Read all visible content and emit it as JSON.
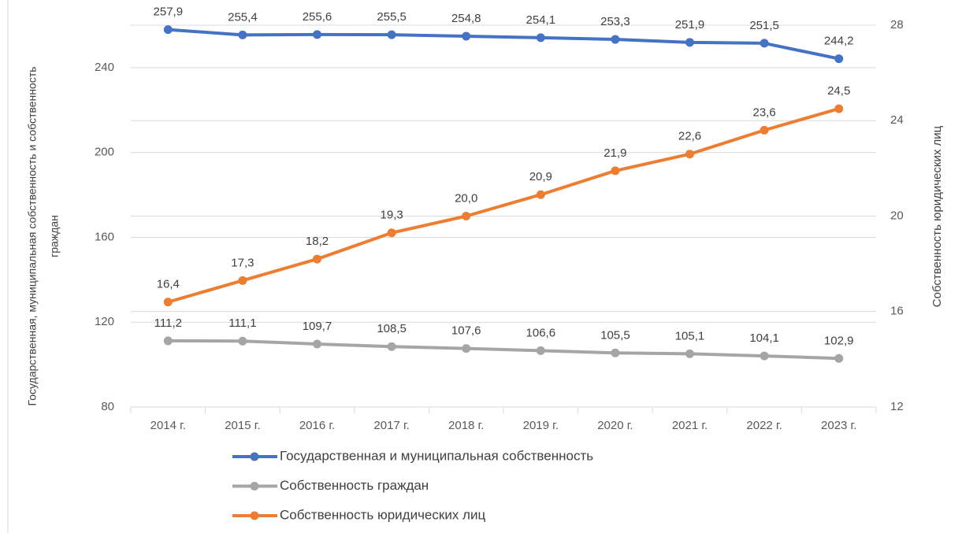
{
  "chart_data": {
    "type": "line",
    "ylabel": [
      "Государственная, муниципальная собственность и собственность",
      "граждан"
    ],
    "y2label": "Собственность юридических лиц",
    "categories": [
      "2014 г.",
      "2015 г.",
      "2016 г.",
      "2017 г.",
      "2018 г.",
      "2019 г.",
      "2020 г.",
      "2021 г.",
      "2022 г.",
      "2023 г."
    ],
    "series": [
      {
        "name": "Государственная и муниципальная собственность",
        "color": "#4472c4",
        "axis": "y",
        "values": [
          257.9,
          255.4,
          255.6,
          255.5,
          254.8,
          254.1,
          253.3,
          251.9,
          251.5,
          244.2
        ],
        "value_labels": [
          "257,9",
          "255,4",
          "255,6",
          "255,5",
          "254,8",
          "254,1",
          "253,3",
          "251,9",
          "251,5",
          "244,2"
        ]
      },
      {
        "name": "Собственность граждан",
        "color": "#a5a5a5",
        "axis": "y",
        "values": [
          111.2,
          111.1,
          109.7,
          108.5,
          107.6,
          106.6,
          105.5,
          105.1,
          104.1,
          102.9
        ],
        "value_labels": [
          "111,2",
          "111,1",
          "109,7",
          "108,5",
          "107,6",
          "106,6",
          "105,5",
          "105,1",
          "104,1",
          "102,9"
        ]
      },
      {
        "name": "Собственность юридических лиц",
        "color": "#ed7d31",
        "axis": "y2",
        "values": [
          16.4,
          17.3,
          18.2,
          19.3,
          20.0,
          20.9,
          21.9,
          22.6,
          23.6,
          24.5
        ],
        "value_labels": [
          "16,4",
          "17,3",
          "18,2",
          "19,3",
          "20,0",
          "20,9",
          "21,9",
          "22,6",
          "23,6",
          "24,5"
        ]
      }
    ],
    "ylim": [
      80,
      260
    ],
    "yticks": [
      80,
      120,
      160,
      200,
      240
    ],
    "y2lim": [
      12,
      28
    ],
    "y2ticks": [
      12,
      16,
      20,
      24,
      28
    ],
    "grid": true,
    "legend": "bottom"
  }
}
